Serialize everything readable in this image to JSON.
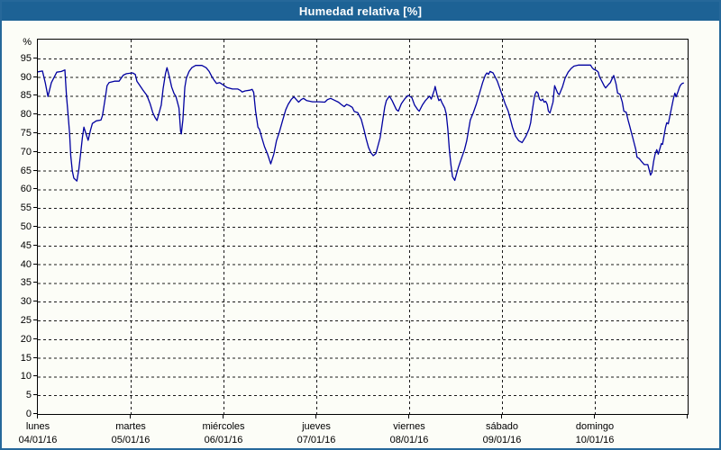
{
  "window": {
    "title": "Humedad relativa [%]"
  },
  "colors": {
    "titlebar_bg": "#1d6295",
    "window_border": "#26689a",
    "content_bg": "#fcfdf7",
    "frame": "#000000",
    "grid": "#1a1a1a",
    "series": "#0000a0",
    "title_text": "#ffffff",
    "label_text": "#000000"
  },
  "chart_data": {
    "type": "line",
    "title": "Humedad relativa [%]",
    "ylabel": "%",
    "ylim": [
      0,
      100
    ],
    "y_ticks": [
      0,
      5,
      10,
      15,
      20,
      25,
      30,
      35,
      40,
      45,
      50,
      55,
      60,
      65,
      70,
      75,
      80,
      85,
      90,
      95
    ],
    "grid": "dashed",
    "legend_position": "none",
    "x_range_hours": [
      0,
      168
    ],
    "x_day_ticks": [
      {
        "hour": 0,
        "day": "lunes",
        "date": "04/01/16"
      },
      {
        "hour": 24,
        "day": "martes",
        "date": "05/01/16"
      },
      {
        "hour": 48,
        "day": "miércoles",
        "date": "06/01/16"
      },
      {
        "hour": 72,
        "day": "jueves",
        "date": "07/01/16"
      },
      {
        "hour": 96,
        "day": "viernes",
        "date": "08/01/16"
      },
      {
        "hour": 120,
        "day": "sábado",
        "date": "09/01/16"
      },
      {
        "hour": 144,
        "day": "domingo",
        "date": "10/01/16"
      }
    ],
    "series": [
      {
        "name": "Humedad relativa [%]",
        "color": "#0000a0",
        "points": [
          [
            0,
            91.4
          ],
          [
            1.2,
            91.6
          ],
          [
            1.9,
            88.5
          ],
          [
            2.6,
            84.8
          ],
          [
            3.5,
            88.5
          ],
          [
            4.9,
            91.3
          ],
          [
            6.1,
            91.5
          ],
          [
            7.0,
            91.9
          ],
          [
            7.4,
            84.9
          ],
          [
            7.8,
            80.1
          ],
          [
            8.2,
            75.0
          ],
          [
            8.5,
            69.0
          ],
          [
            8.9,
            65.0
          ],
          [
            9.3,
            63.0
          ],
          [
            10.1,
            62.2
          ],
          [
            10.6,
            65.4
          ],
          [
            11.1,
            69.8
          ],
          [
            11.5,
            73.8
          ],
          [
            11.9,
            76.6
          ],
          [
            12.4,
            75.0
          ],
          [
            13.0,
            73.1
          ],
          [
            13.6,
            75.8
          ],
          [
            14.1,
            77.6
          ],
          [
            15.1,
            78.3
          ],
          [
            16.3,
            78.5
          ],
          [
            16.7,
            79.7
          ],
          [
            17.5,
            84.9
          ],
          [
            17.9,
            87.7
          ],
          [
            18.4,
            88.5
          ],
          [
            19.8,
            88.9
          ],
          [
            21.0,
            88.9
          ],
          [
            22.1,
            90.5
          ],
          [
            22.9,
            90.9
          ],
          [
            24.5,
            91.1
          ],
          [
            25.2,
            90.7
          ],
          [
            25.6,
            88.9
          ],
          [
            26.2,
            88.0
          ],
          [
            27.2,
            86.5
          ],
          [
            28.2,
            85.1
          ],
          [
            29.0,
            82.9
          ],
          [
            29.7,
            80.5
          ],
          [
            30.3,
            79.2
          ],
          [
            30.8,
            78.4
          ],
          [
            31.9,
            82.5
          ],
          [
            32.4,
            86.9
          ],
          [
            33.0,
            90.9
          ],
          [
            33.4,
            92.5
          ],
          [
            34.0,
            90.1
          ],
          [
            34.6,
            87.3
          ],
          [
            35.2,
            85.6
          ],
          [
            35.7,
            84.8
          ],
          [
            36.5,
            81.7
          ],
          [
            36.9,
            75.5
          ],
          [
            37.1,
            74.8
          ],
          [
            37.5,
            78.5
          ],
          [
            38.0,
            87.3
          ],
          [
            38.4,
            89.7
          ],
          [
            39.1,
            91.5
          ],
          [
            39.8,
            92.5
          ],
          [
            40.8,
            93.1
          ],
          [
            42.4,
            93.1
          ],
          [
            43.5,
            92.5
          ],
          [
            44.3,
            91.5
          ],
          [
            45.0,
            90.1
          ],
          [
            45.6,
            89.1
          ],
          [
            46.2,
            88.3
          ],
          [
            47.0,
            88.5
          ],
          [
            47.8,
            88.0
          ],
          [
            48.3,
            87.6
          ],
          [
            48.9,
            87.2
          ],
          [
            50.3,
            86.8
          ],
          [
            51.7,
            86.8
          ],
          [
            52.4,
            86.4
          ],
          [
            52.8,
            86.0
          ],
          [
            53.6,
            86.3
          ],
          [
            54.8,
            86.5
          ],
          [
            55.4,
            86.7
          ],
          [
            55.8,
            85.9
          ],
          [
            56.3,
            80.9
          ],
          [
            56.9,
            76.6
          ],
          [
            57.3,
            76.0
          ],
          [
            57.9,
            73.8
          ],
          [
            58.6,
            71.4
          ],
          [
            59.4,
            69.4
          ],
          [
            60.2,
            66.8
          ],
          [
            61.0,
            69.4
          ],
          [
            61.7,
            73.0
          ],
          [
            62.5,
            75.5
          ],
          [
            63.3,
            78.5
          ],
          [
            64.1,
            81.3
          ],
          [
            64.7,
            82.7
          ],
          [
            65.5,
            84.0
          ],
          [
            66.2,
            84.7
          ],
          [
            66.8,
            84.0
          ],
          [
            67.4,
            83.3
          ],
          [
            68.1,
            84.0
          ],
          [
            68.7,
            84.3
          ],
          [
            69.5,
            83.7
          ],
          [
            71.0,
            83.4
          ],
          [
            72.7,
            83.4
          ],
          [
            74.2,
            83.3
          ],
          [
            74.9,
            84.0
          ],
          [
            75.7,
            84.3
          ],
          [
            76.9,
            83.7
          ],
          [
            77.7,
            83.3
          ],
          [
            78.4,
            82.7
          ],
          [
            79.2,
            82.1
          ],
          [
            79.8,
            82.7
          ],
          [
            80.5,
            82.4
          ],
          [
            81.3,
            81.9
          ],
          [
            81.8,
            80.8
          ],
          [
            82.7,
            80.5
          ],
          [
            83.6,
            78.7
          ],
          [
            84.3,
            76.0
          ],
          [
            84.9,
            73.4
          ],
          [
            85.5,
            71.2
          ],
          [
            86.1,
            69.8
          ],
          [
            86.7,
            69.0
          ],
          [
            87.4,
            69.6
          ],
          [
            88.5,
            73.8
          ],
          [
            89.3,
            79.3
          ],
          [
            89.7,
            82.1
          ],
          [
            90.1,
            83.7
          ],
          [
            90.9,
            84.9
          ],
          [
            91.6,
            83.7
          ],
          [
            92.7,
            81.3
          ],
          [
            93.2,
            80.9
          ],
          [
            94.0,
            82.9
          ],
          [
            94.8,
            84.1
          ],
          [
            95.5,
            84.9
          ],
          [
            95.8,
            85.1
          ],
          [
            96.7,
            84.5
          ],
          [
            97.4,
            82.5
          ],
          [
            98.2,
            81.3
          ],
          [
            98.6,
            80.9
          ],
          [
            99.4,
            82.5
          ],
          [
            100.2,
            83.7
          ],
          [
            100.9,
            84.5
          ],
          [
            101.3,
            84.9
          ],
          [
            101.7,
            84.1
          ],
          [
            102.5,
            86.5
          ],
          [
            102.7,
            87.5
          ],
          [
            103.3,
            84.9
          ],
          [
            103.7,
            83.7
          ],
          [
            104.1,
            84.1
          ],
          [
            104.4,
            83.3
          ],
          [
            104.8,
            82.5
          ],
          [
            105.2,
            81.7
          ],
          [
            105.6,
            80.1
          ],
          [
            106.0,
            76.1
          ],
          [
            106.4,
            70.6
          ],
          [
            106.8,
            66.6
          ],
          [
            107.2,
            63.4
          ],
          [
            107.8,
            62.4
          ],
          [
            108.7,
            65.8
          ],
          [
            109.5,
            68.2
          ],
          [
            110.3,
            70.6
          ],
          [
            110.9,
            73.0
          ],
          [
            111.8,
            78.5
          ],
          [
            112.6,
            80.5
          ],
          [
            113.4,
            82.9
          ],
          [
            114.2,
            85.7
          ],
          [
            115.0,
            88.5
          ],
          [
            115.7,
            90.5
          ],
          [
            116.1,
            91.1
          ],
          [
            116.5,
            90.7
          ],
          [
            116.9,
            91.5
          ],
          [
            117.7,
            91.1
          ],
          [
            118.8,
            88.9
          ],
          [
            119.6,
            86.5
          ],
          [
            120.4,
            84.1
          ],
          [
            120.8,
            82.9
          ],
          [
            121.6,
            80.9
          ],
          [
            122.3,
            78.2
          ],
          [
            122.7,
            76.6
          ],
          [
            123.1,
            75.4
          ],
          [
            123.5,
            74.2
          ],
          [
            124.3,
            73.0
          ],
          [
            125.2,
            72.5
          ],
          [
            126.2,
            74.2
          ],
          [
            127.0,
            76.1
          ],
          [
            127.4,
            77.8
          ],
          [
            127.7,
            80.1
          ],
          [
            128.4,
            84.9
          ],
          [
            128.7,
            85.7
          ],
          [
            128.9,
            86.1
          ],
          [
            129.3,
            85.7
          ],
          [
            129.7,
            84.1
          ],
          [
            130.1,
            83.7
          ],
          [
            130.5,
            84.1
          ],
          [
            130.9,
            83.3
          ],
          [
            131.3,
            83.5
          ],
          [
            131.7,
            82.7
          ],
          [
            132.0,
            80.9
          ],
          [
            132.4,
            80.4
          ],
          [
            133.2,
            83.3
          ],
          [
            133.6,
            87.7
          ],
          [
            134.4,
            85.7
          ],
          [
            134.8,
            85.3
          ],
          [
            135.6,
            87.3
          ],
          [
            136.3,
            89.7
          ],
          [
            137.1,
            91.3
          ],
          [
            137.9,
            92.3
          ],
          [
            138.6,
            92.9
          ],
          [
            139.8,
            93.2
          ],
          [
            141.7,
            93.2
          ],
          [
            142.9,
            93.2
          ],
          [
            143.3,
            92.5
          ],
          [
            143.7,
            92.1
          ],
          [
            144.5,
            91.7
          ],
          [
            144.9,
            91.3
          ],
          [
            145.2,
            90.1
          ],
          [
            145.6,
            89.3
          ],
          [
            146.0,
            88.5
          ],
          [
            146.4,
            87.7
          ],
          [
            146.8,
            87.1
          ],
          [
            147.6,
            88.1
          ],
          [
            148.0,
            88.5
          ],
          [
            148.7,
            90.1
          ],
          [
            148.9,
            90.4
          ],
          [
            149.5,
            88.1
          ],
          [
            149.9,
            85.7
          ],
          [
            150.5,
            85.4
          ],
          [
            151.1,
            83.3
          ],
          [
            151.5,
            80.9
          ],
          [
            152.1,
            80.6
          ],
          [
            152.6,
            78.5
          ],
          [
            153.0,
            77.0
          ],
          [
            153.4,
            75.4
          ],
          [
            153.8,
            73.8
          ],
          [
            154.2,
            72.2
          ],
          [
            154.6,
            70.6
          ],
          [
            154.9,
            68.6
          ],
          [
            155.5,
            68.2
          ],
          [
            156.1,
            67.4
          ],
          [
            156.8,
            66.6
          ],
          [
            157.7,
            66.6
          ],
          [
            158.0,
            65.4
          ],
          [
            158.4,
            63.8
          ],
          [
            158.8,
            64.6
          ],
          [
            159.2,
            67.4
          ],
          [
            159.6,
            69.4
          ],
          [
            160.0,
            70.6
          ],
          [
            160.4,
            69.4
          ],
          [
            161.2,
            72.2
          ],
          [
            161.5,
            72.0
          ],
          [
            162.3,
            76.6
          ],
          [
            162.6,
            77.8
          ],
          [
            163.0,
            77.5
          ],
          [
            163.5,
            80.1
          ],
          [
            163.9,
            82.1
          ],
          [
            164.3,
            84.1
          ],
          [
            164.7,
            85.7
          ],
          [
            165.0,
            84.7
          ],
          [
            165.5,
            86.1
          ],
          [
            165.9,
            87.3
          ],
          [
            166.2,
            87.9
          ],
          [
            166.6,
            88.3
          ],
          [
            166.9,
            88.4
          ]
        ]
      }
    ]
  }
}
